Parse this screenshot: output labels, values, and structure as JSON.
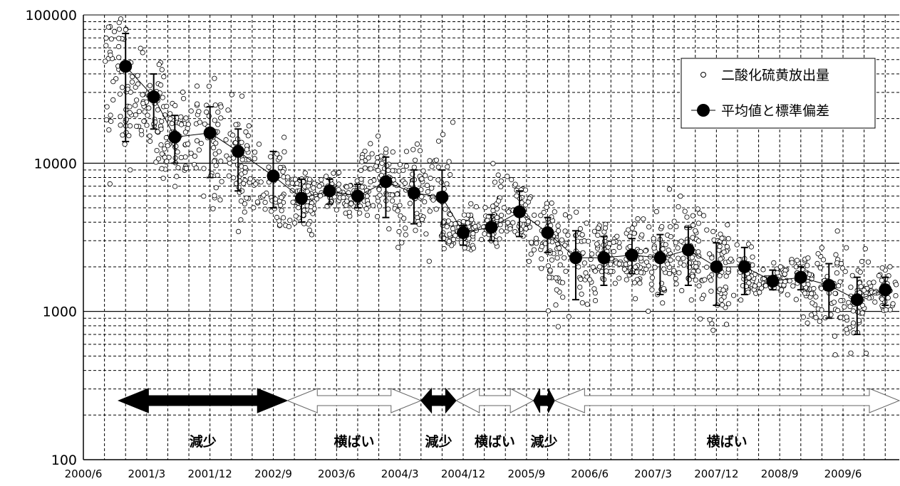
{
  "chart_data": {
    "type": "scatter",
    "y_scale": "log",
    "ylim": [
      100,
      100000
    ],
    "xlim": [
      "2000/6",
      "2010/2"
    ],
    "yticks": [
      "100000",
      "10000",
      "1000",
      "100"
    ],
    "xticks": [
      "2000/6",
      "2001/3",
      "2001/12",
      "2002/9",
      "2003/6",
      "2004/3",
      "2004/12",
      "2005/9",
      "2006/6",
      "2007/3",
      "2007/12",
      "2008/9",
      "2009/6"
    ],
    "grid": true,
    "legend_position": "top-right",
    "legend": {
      "scatter_label": "二酸化硫黄放出量",
      "mean_label": "平均値と標準偏差"
    },
    "series": [
      {
        "name": "平均値と標準偏差",
        "points": [
          {
            "x": "2000/12",
            "y": 45000,
            "low": 14000,
            "high": 75000
          },
          {
            "x": "2001/4",
            "y": 28000,
            "low": 17000,
            "high": 40000
          },
          {
            "x": "2001/7",
            "y": 15000,
            "low": 10000,
            "high": 21000
          },
          {
            "x": "2001/12",
            "y": 16000,
            "low": 8000,
            "high": 24000
          },
          {
            "x": "2002/4",
            "y": 12000,
            "low": 6500,
            "high": 17000
          },
          {
            "x": "2002/9",
            "y": 8200,
            "low": 5000,
            "high": 12000
          },
          {
            "x": "2003/1",
            "y": 5800,
            "low": 4000,
            "high": 7800
          },
          {
            "x": "2003/5",
            "y": 6500,
            "low": 5300,
            "high": 7800
          },
          {
            "x": "2003/9",
            "y": 6000,
            "low": 5000,
            "high": 7200
          },
          {
            "x": "2004/1",
            "y": 7500,
            "low": 4300,
            "high": 11000
          },
          {
            "x": "2004/5",
            "y": 6300,
            "low": 3900,
            "high": 9000
          },
          {
            "x": "2004/9",
            "y": 5900,
            "low": 3000,
            "high": 9000
          },
          {
            "x": "2004/12",
            "y": 3400,
            "low": 2800,
            "high": 3800
          },
          {
            "x": "2005/4",
            "y": 3700,
            "low": 3000,
            "high": 4500
          },
          {
            "x": "2005/8",
            "y": 4700,
            "low": 3200,
            "high": 6500
          },
          {
            "x": "2005/12",
            "y": 3400,
            "low": 2500,
            "high": 4300
          },
          {
            "x": "2006/4",
            "y": 2300,
            "low": 1200,
            "high": 3500
          },
          {
            "x": "2006/8",
            "y": 2300,
            "low": 1500,
            "high": 3200
          },
          {
            "x": "2006/12",
            "y": 2400,
            "low": 1800,
            "high": 3100
          },
          {
            "x": "2007/4",
            "y": 2300,
            "low": 1300,
            "high": 3300
          },
          {
            "x": "2007/8",
            "y": 2600,
            "low": 1500,
            "high": 3700
          },
          {
            "x": "2007/12",
            "y": 2000,
            "low": 1100,
            "high": 2900
          },
          {
            "x": "2008/4",
            "y": 2000,
            "low": 1300,
            "high": 2700
          },
          {
            "x": "2008/8",
            "y": 1600,
            "low": 1400,
            "high": 1900
          },
          {
            "x": "2008/12",
            "y": 1700,
            "low": 1400,
            "high": 2000
          },
          {
            "x": "2009/4",
            "y": 1500,
            "low": 900,
            "high": 2100
          },
          {
            "x": "2009/8",
            "y": 1200,
            "low": 700,
            "high": 1700
          },
          {
            "x": "2009/12",
            "y": 1400,
            "low": 1100,
            "high": 1700
          }
        ]
      }
    ],
    "phases": [
      {
        "label": "減少",
        "start": "2000/11",
        "end": "2002/11",
        "style": "filled"
      },
      {
        "label": "横ばい",
        "start": "2002/11",
        "end": "2004/6",
        "style": "outline"
      },
      {
        "label": "減少",
        "start": "2004/6",
        "end": "2004/11",
        "style": "filled"
      },
      {
        "label": "横ばい",
        "start": "2004/11",
        "end": "2005/10",
        "style": "outline"
      },
      {
        "label": "減少",
        "start": "2005/10",
        "end": "2006/1",
        "style": "filled"
      },
      {
        "label": "横ばい",
        "start": "2006/1",
        "end": "2010/2",
        "style": "outline"
      }
    ]
  }
}
